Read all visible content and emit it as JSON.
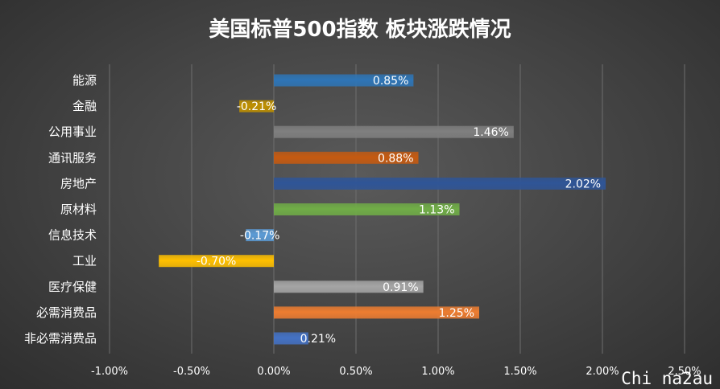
{
  "chart_data": {
    "type": "bar",
    "orientation": "horizontal",
    "title": "美国标普500指数 板块涨跌情况",
    "categories": [
      "能源",
      "金融",
      "公用事业",
      "通讯服务",
      "房地产",
      "原材料",
      "信息技术",
      "工业",
      "医疗保健",
      "必需消费品",
      "非必需消费品"
    ],
    "values": [
      0.85,
      -0.21,
      1.46,
      0.88,
      2.02,
      1.13,
      -0.17,
      -0.7,
      0.91,
      1.25,
      0.21
    ],
    "value_labels": [
      "0.85%",
      "-0.21%",
      "1.46%",
      "0.88%",
      "2.02%",
      "1.13%",
      "-0.17%",
      "-0.70%",
      "0.91%",
      "1.25%",
      "0.21%"
    ],
    "colors": [
      "#2e75b6",
      "#bf9000",
      "#7f7f7f",
      "#c55a11",
      "#2f5597",
      "#70ad47",
      "#5b9bd5",
      "#ffc000",
      "#a5a5a5",
      "#ed7d31",
      "#4472c4"
    ],
    "xlim": [
      -1.0,
      2.5
    ],
    "ticks": [
      -1.0,
      -0.5,
      0.0,
      0.5,
      1.0,
      1.5,
      2.0,
      2.5
    ],
    "tick_labels": [
      "-1.00%",
      "-0.50%",
      "0.00%",
      "0.50%",
      "1.00%",
      "1.50%",
      "2.00%",
      "2.50%"
    ],
    "grid": "vertical",
    "legend": "none"
  },
  "watermark": "Chi na2au"
}
